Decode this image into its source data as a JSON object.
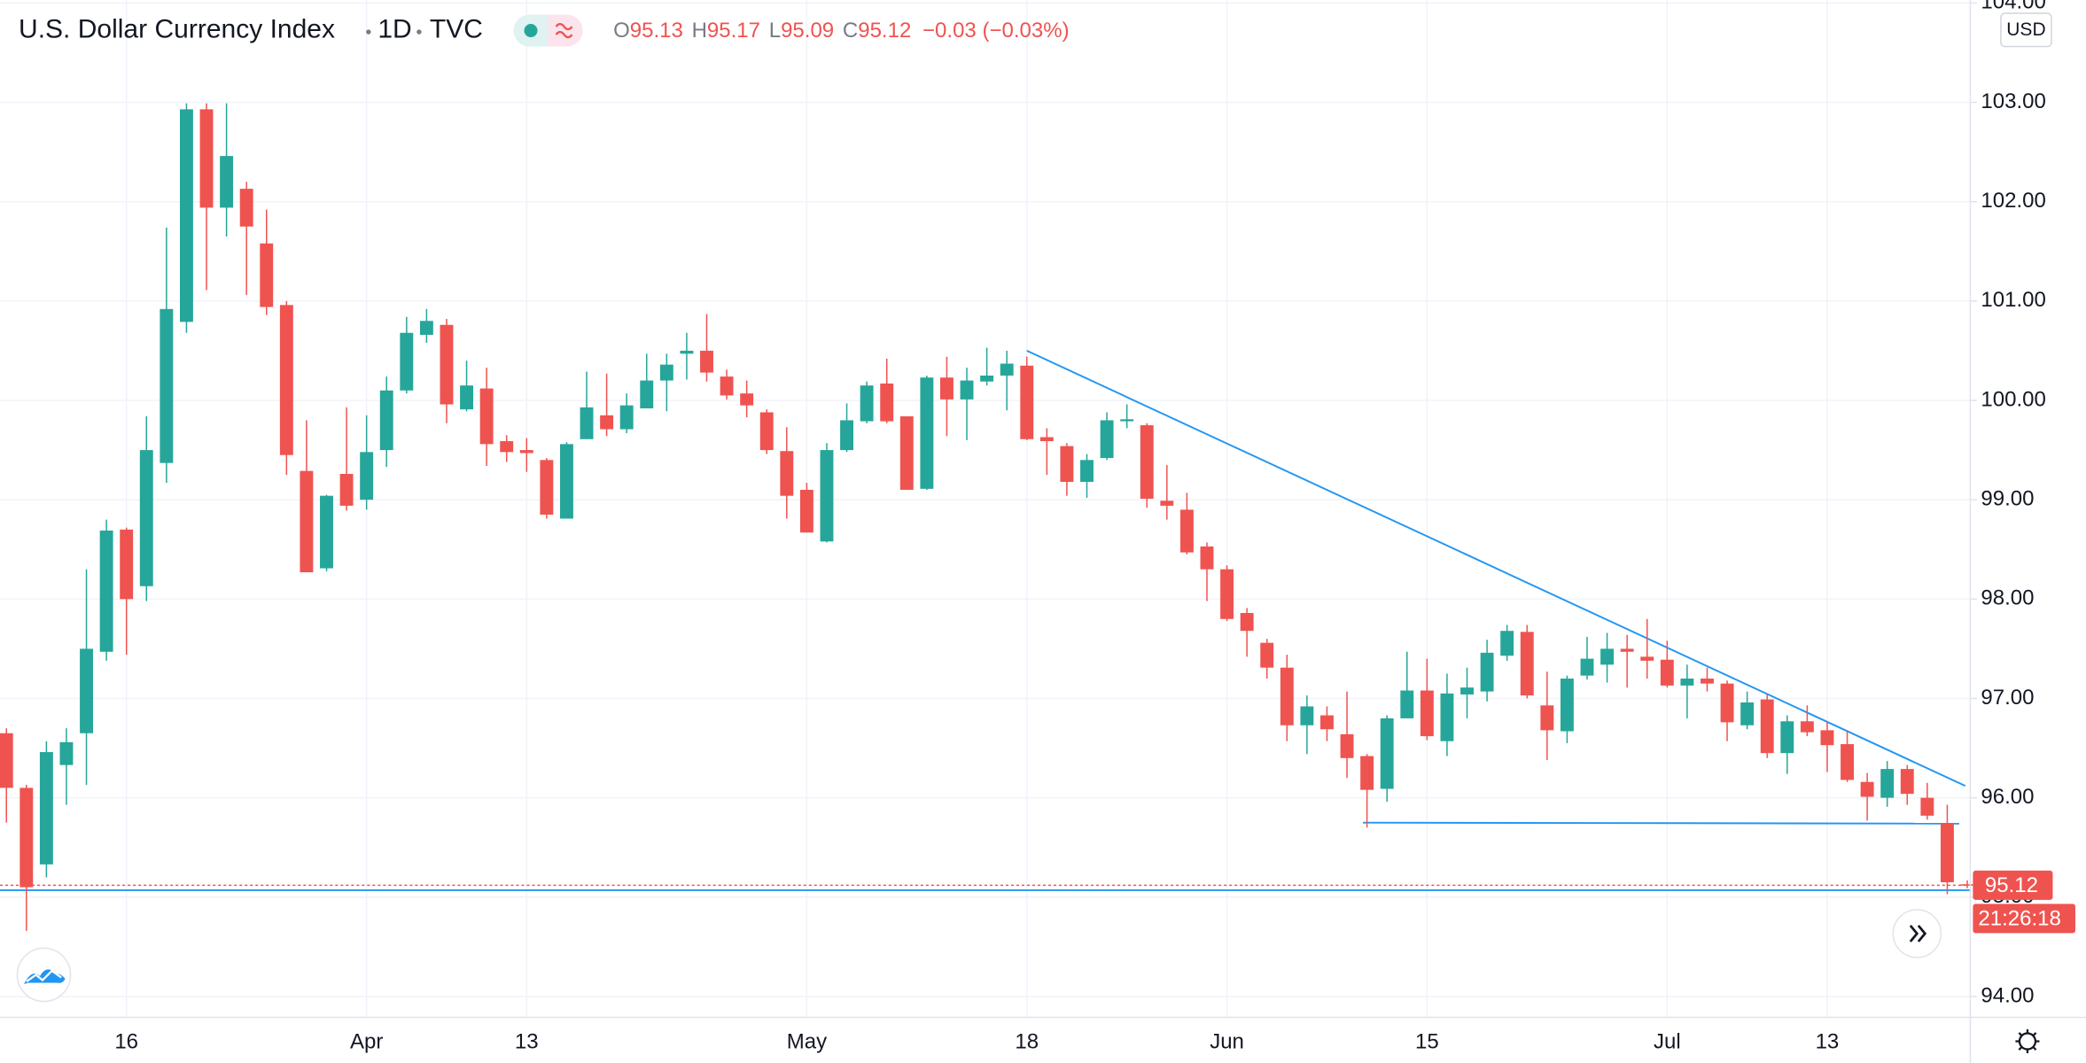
{
  "chart_data": {
    "type": "candlestick",
    "title": "U.S. Dollar Currency Index",
    "interval": "1D",
    "source": "TVC",
    "legend": {
      "open_label": "O",
      "high_label": "H",
      "low_label": "L",
      "close_label": "C",
      "change": "−0.03 (−0.03%)"
    },
    "currency": "USD",
    "countdown": "21:26:18",
    "categories": [
      null,
      null,
      null,
      null,
      null,
      null,
      "16",
      null,
      null,
      null,
      null,
      null,
      null,
      null,
      null,
      null,
      null,
      null,
      "Apr",
      null,
      null,
      null,
      null,
      null,
      null,
      null,
      "13",
      null,
      null,
      null,
      null,
      null,
      null,
      null,
      null,
      null,
      null,
      null,
      null,
      null,
      "May",
      null,
      null,
      null,
      null,
      null,
      null,
      null,
      null,
      null,
      null,
      "18",
      null,
      null,
      null,
      null,
      null,
      null,
      null,
      null,
      null,
      "Jun",
      null,
      null,
      null,
      null,
      null,
      null,
      null,
      null,
      null,
      "15",
      null,
      null,
      null,
      null,
      null,
      null,
      null,
      null,
      null,
      null,
      null,
      "Jul",
      null,
      null,
      null,
      null,
      null,
      null,
      null,
      "13",
      null,
      null,
      null,
      null,
      null,
      null,
      null
    ],
    "open": [
      96.65,
      96.1,
      95.33,
      96.33,
      96.65,
      97.47,
      98.7,
      98.13,
      99.37,
      100.79,
      102.93,
      101.94,
      102.13,
      101.58,
      100.96,
      99.29,
      98.31,
      99.26,
      99.0,
      99.5,
      100.1,
      100.66,
      100.76,
      99.91,
      100.12,
      99.59,
      99.5,
      99.4,
      98.81,
      99.61,
      99.85,
      99.71,
      99.92,
      100.2,
      100.47,
      100.5,
      100.24,
      100.07,
      99.88,
      99.49,
      99.1,
      98.58,
      99.5,
      99.79,
      100.17,
      99.84,
      99.11,
      100.23,
      100.01,
      100.19,
      100.25,
      100.35,
      99.63,
      99.54,
      99.18,
      99.42,
      99.79,
      99.75,
      98.99,
      98.9,
      98.53,
      98.3,
      97.86,
      97.56,
      97.31,
      96.73,
      96.83,
      96.64,
      96.42,
      96.09,
      96.8,
      97.08,
      96.57,
      97.04,
      97.07,
      97.43,
      97.67,
      96.93,
      96.67,
      97.23,
      97.34,
      97.5,
      97.42,
      97.39,
      97.13,
      97.2,
      97.15,
      96.73,
      96.99,
      96.45,
      96.77,
      96.68,
      96.54,
      96.16,
      96.0,
      96.29,
      96.0,
      95.74,
      95.13
    ],
    "high": [
      96.7,
      96.13,
      96.57,
      96.7,
      98.3,
      98.8,
      98.72,
      99.84,
      101.74,
      102.99,
      102.99,
      102.99,
      102.2,
      101.92,
      101.0,
      99.8,
      99.05,
      99.93,
      99.85,
      100.24,
      100.84,
      100.92,
      100.82,
      100.4,
      100.33,
      99.65,
      99.62,
      99.42,
      99.58,
      100.29,
      100.27,
      100.07,
      100.47,
      100.47,
      100.68,
      100.87,
      100.31,
      100.2,
      99.91,
      99.73,
      99.17,
      99.57,
      99.97,
      100.19,
      100.42,
      99.84,
      100.25,
      100.44,
      100.33,
      100.53,
      100.5,
      100.44,
      99.72,
      99.57,
      99.46,
      99.88,
      99.96,
      99.77,
      99.35,
      99.07,
      98.57,
      98.34,
      97.91,
      97.6,
      97.44,
      97.03,
      96.92,
      97.07,
      96.44,
      96.83,
      97.47,
      97.4,
      97.25,
      97.31,
      97.59,
      97.74,
      97.74,
      97.27,
      97.23,
      97.62,
      97.66,
      97.64,
      97.8,
      97.58,
      97.34,
      97.31,
      97.18,
      97.07,
      97.04,
      96.83,
      96.93,
      96.77,
      96.68,
      96.25,
      96.37,
      96.33,
      96.15,
      95.93,
      95.17
    ],
    "low": [
      95.75,
      94.66,
      95.2,
      95.93,
      96.13,
      97.38,
      97.44,
      97.98,
      99.17,
      100.68,
      101.11,
      101.65,
      101.06,
      100.86,
      99.25,
      98.27,
      98.28,
      98.89,
      98.9,
      99.33,
      100.07,
      100.58,
      99.77,
      99.89,
      99.34,
      99.38,
      99.28,
      98.81,
      98.81,
      99.61,
      99.64,
      99.67,
      99.92,
      99.89,
      100.21,
      100.19,
      100.01,
      99.83,
      99.46,
      98.81,
      98.67,
      98.57,
      99.48,
      99.77,
      99.77,
      99.1,
      99.1,
      99.64,
      99.6,
      100.15,
      99.9,
      99.6,
      99.25,
      99.04,
      99.02,
      99.4,
      99.72,
      98.92,
      98.8,
      98.45,
      97.98,
      97.78,
      97.42,
      97.2,
      96.57,
      96.44,
      96.57,
      96.2,
      95.7,
      95.96,
      96.8,
      96.58,
      96.42,
      96.8,
      96.97,
      97.38,
      97.0,
      96.38,
      96.55,
      97.19,
      97.16,
      97.11,
      97.2,
      97.11,
      96.8,
      97.07,
      96.57,
      96.69,
      96.4,
      96.24,
      96.62,
      96.26,
      96.16,
      95.77,
      95.91,
      95.93,
      95.78,
      95.03,
      95.09
    ],
    "close": [
      96.1,
      95.1,
      96.46,
      96.56,
      97.5,
      98.69,
      98.0,
      99.5,
      100.92,
      102.93,
      101.94,
      102.46,
      101.75,
      100.94,
      99.45,
      98.27,
      99.04,
      98.94,
      99.48,
      100.1,
      100.68,
      100.8,
      99.96,
      100.15,
      99.56,
      99.48,
      99.47,
      98.85,
      99.56,
      99.93,
      99.71,
      99.95,
      100.2,
      100.36,
      100.5,
      100.28,
      100.05,
      99.95,
      99.5,
      99.04,
      98.67,
      99.5,
      99.8,
      100.15,
      99.79,
      99.1,
      100.23,
      100.01,
      100.2,
      100.25,
      100.37,
      99.61,
      99.59,
      99.18,
      99.4,
      99.8,
      99.81,
      99.01,
      98.94,
      98.47,
      98.3,
      97.8,
      97.68,
      97.31,
      96.73,
      96.92,
      96.69,
      96.4,
      96.08,
      96.8,
      97.08,
      96.62,
      97.05,
      97.11,
      97.46,
      97.68,
      97.03,
      96.68,
      97.2,
      97.4,
      97.5,
      97.47,
      97.38,
      97.13,
      97.2,
      97.15,
      96.76,
      96.96,
      96.45,
      96.77,
      96.66,
      96.53,
      96.18,
      96.01,
      96.29,
      96.04,
      95.82,
      95.15,
      95.12
    ],
    "up_color": "#26a69a",
    "down_color": "#ef5350",
    "xlim": [
      -0.32,
      98.15
    ],
    "ylim": [
      93.79,
      104.03
    ],
    "yticks": [
      {
        "value": 94,
        "label": "94.00"
      },
      {
        "value": 95,
        "label": "95.00"
      },
      {
        "value": 96,
        "label": "96.00"
      },
      {
        "value": 97,
        "label": "97.00"
      },
      {
        "value": 98,
        "label": "98.00"
      },
      {
        "value": 99,
        "label": "99.00"
      },
      {
        "value": 100,
        "label": "100.00"
      },
      {
        "value": 101,
        "label": "101.00"
      },
      {
        "value": 102,
        "label": "102.00"
      },
      {
        "value": 103,
        "label": "103.00"
      },
      {
        "value": 104,
        "label": "104.00"
      }
    ],
    "grid": true,
    "trend_lines": [
      {
        "x": [
          51,
          97.9
        ],
        "y": [
          100.5,
          96.12
        ],
        "color": "#2196f3"
      },
      {
        "x": [
          67.8,
          97.6
        ],
        "y": [
          95.75,
          95.74
        ],
        "color": "#2196f3"
      }
    ],
    "horizontal_lines": [
      {
        "y": 95.07,
        "color": "#2196f3"
      }
    ]
  }
}
